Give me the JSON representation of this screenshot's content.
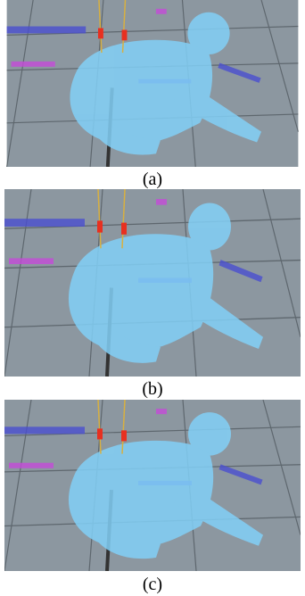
{
  "figure": {
    "captions": [
      "(a)",
      "(b)",
      "(c)"
    ]
  }
}
